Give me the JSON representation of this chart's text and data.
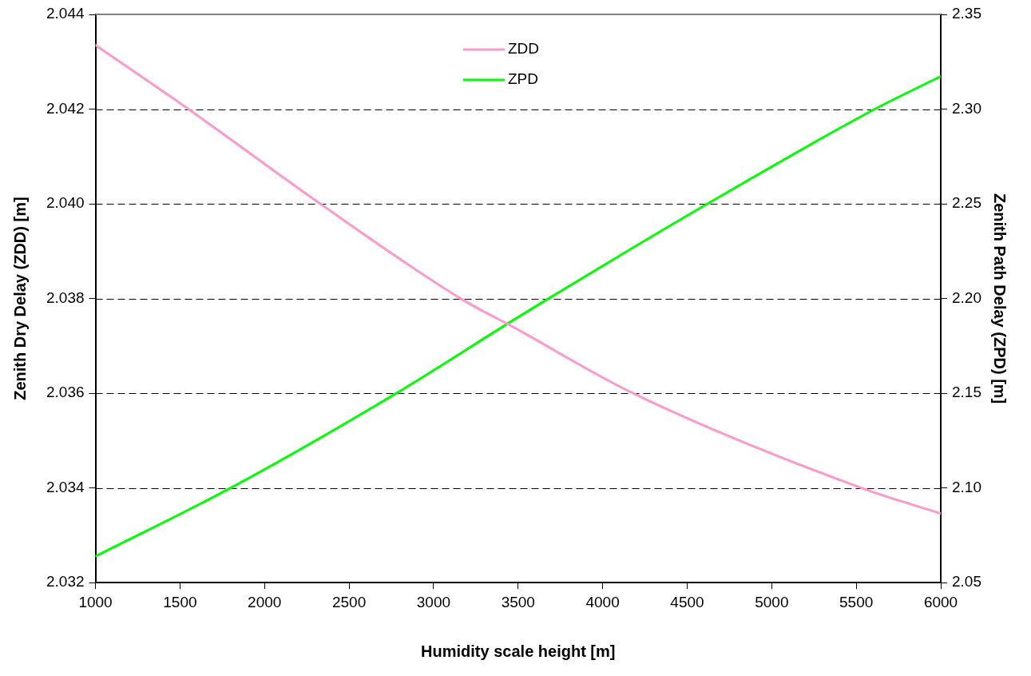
{
  "chart_data": {
    "type": "line",
    "xlabel": "Humidity scale height [m]",
    "ylabel": "Zenith Dry Delay (ZDD) [m]",
    "y2label": "Zenith Path Delay (ZPD) [m]",
    "xlim": [
      1000,
      6000
    ],
    "xticks": [
      1000,
      1500,
      2000,
      2500,
      3000,
      3500,
      4000,
      4500,
      5000,
      5500,
      6000
    ],
    "ylim": [
      2.032,
      2.044
    ],
    "yticks": [
      {
        "value": 2.032,
        "label": "2.032"
      },
      {
        "value": 2.034,
        "label": "2.034"
      },
      {
        "value": 2.036,
        "label": "2.036"
      },
      {
        "value": 2.038,
        "label": "2.038"
      },
      {
        "value": 2.04,
        "label": "2.040"
      },
      {
        "value": 2.042,
        "label": "2.042"
      },
      {
        "value": 2.044,
        "label": "2.044"
      }
    ],
    "y2lim": [
      2.05,
      2.35
    ],
    "y2ticks": [
      {
        "value": 2.05,
        "label": "2.05"
      },
      {
        "value": 2.1,
        "label": "2.10"
      },
      {
        "value": 2.15,
        "label": "2.15"
      },
      {
        "value": 2.2,
        "label": "2.20"
      },
      {
        "value": 2.25,
        "label": "2.25"
      },
      {
        "value": 2.3,
        "label": "2.30"
      },
      {
        "value": 2.35,
        "label": "2.35"
      }
    ],
    "grid": "y",
    "legend": "top",
    "marker": "none",
    "line_style": "solid",
    "series": [
      {
        "name": "ZDD",
        "color": "#ff99cc",
        "x": [
          1000,
          1550,
          2330,
          3160,
          3470,
          4180,
          5530,
          6000
        ],
        "values": [
          2.04335,
          2.042,
          2.04,
          2.038,
          2.0374,
          2.036,
          2.034,
          2.03346
        ]
      },
      {
        "name": "ZPD",
        "color": "#00ff00",
        "axis": "y2",
        "x": [
          1000,
          1800,
          2780,
          3470,
          3680,
          4620,
          5610,
          6000
        ],
        "values": [
          2.0639,
          2.1,
          2.15,
          2.1885,
          2.2,
          2.25,
          2.3,
          2.3173
        ]
      }
    ]
  }
}
